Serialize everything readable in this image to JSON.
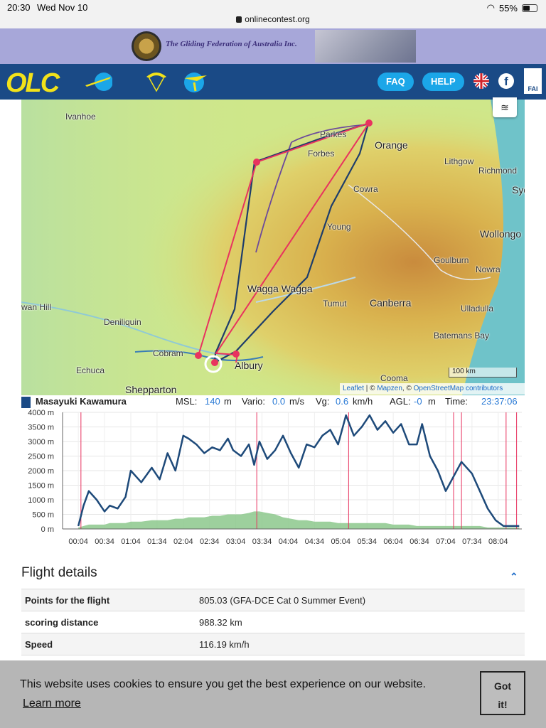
{
  "status": {
    "time": "20:30",
    "date": "Wed Nov 10",
    "url": "onlinecontest.org",
    "battery": "55%"
  },
  "banner": {
    "org": "The Gliding Federation of Australia Inc."
  },
  "nav": {
    "logo": "OLC",
    "faq": "FAQ",
    "help": "HELP",
    "fai": "FAI"
  },
  "map": {
    "labels": [
      "Ivanhoe",
      "Parkes",
      "Forbes",
      "Orange",
      "Lithgow",
      "Richmond",
      "Syd",
      "Cowra",
      "Young",
      "Wollongo",
      "Goulburn",
      "Nowra",
      "Wagga Wagga",
      "Canberra",
      "Tumut",
      "Ulladulla",
      "wan Hill",
      "Deniliquin",
      "Batemans Bay",
      "Cobram",
      "Albury",
      "Echuca",
      "Cooma",
      "Shepparton"
    ],
    "scale": "100 km",
    "attribution": {
      "leaflet": "Leaflet",
      "sep1": " | © ",
      "mapzen": "Mapzen",
      "sep2": ", © ",
      "osm": "OpenStreetMap contributors"
    }
  },
  "stats": {
    "pilot": "Masayuki Kawamura",
    "msl_label": "MSL:",
    "msl_value": "140",
    "msl_unit": "m",
    "vario_label": "Vario:",
    "vario_value": "0.0",
    "vario_unit": "m/s",
    "vg_label": "Vg:",
    "vg_value": "0.6",
    "vg_unit": "km/h",
    "agl_label": "AGL:",
    "agl_value": "-0",
    "agl_unit": "m",
    "time_label": "Time:",
    "time_value": "23:37:06"
  },
  "chart_data": {
    "type": "line",
    "y_tick_labels": [
      "4000 m",
      "3500 m",
      "3000 m",
      "2500 m",
      "2000 m",
      "1500 m",
      "1000 m",
      "500 m",
      "0 m"
    ],
    "ylim": [
      0,
      4000
    ],
    "x_tick_labels": [
      "00:04",
      "00:34",
      "01:04",
      "01:34",
      "02:04",
      "02:34",
      "03:04",
      "03:34",
      "04:04",
      "04:34",
      "05:04",
      "05:34",
      "06:04",
      "06:34",
      "07:04",
      "07:34",
      "08:04"
    ],
    "altitude_x": [
      0,
      0.1,
      0.2,
      0.35,
      0.5,
      0.6,
      0.75,
      0.9,
      1.0,
      1.2,
      1.4,
      1.55,
      1.7,
      1.85,
      2.0,
      2.1,
      2.25,
      2.4,
      2.55,
      2.7,
      2.85,
      2.95,
      3.1,
      3.25,
      3.35,
      3.45,
      3.6,
      3.75,
      3.9,
      4.05,
      4.2,
      4.35,
      4.5,
      4.65,
      4.8,
      4.95,
      5.1,
      5.25,
      5.4,
      5.55,
      5.7,
      5.85,
      6.0,
      6.15,
      6.3,
      6.45,
      6.55,
      6.7,
      6.85,
      7.0,
      7.15,
      7.3,
      7.5,
      7.65,
      7.8,
      7.95,
      8.1,
      8.25,
      8.4
    ],
    "altitude_m": [
      100,
      800,
      1300,
      1000,
      600,
      800,
      700,
      1100,
      2000,
      1600,
      2100,
      1700,
      2600,
      2000,
      3200,
      3100,
      2900,
      2600,
      2800,
      2700,
      3100,
      2700,
      2500,
      2900,
      2200,
      3000,
      2400,
      2700,
      3200,
      2600,
      2100,
      2900,
      2800,
      3200,
      3400,
      2900,
      3900,
      3200,
      3500,
      3900,
      3400,
      3700,
      3300,
      3600,
      2900,
      2900,
      3600,
      2500,
      2000,
      1300,
      1800,
      2300,
      1900,
      1300,
      700,
      300,
      100,
      100,
      100
    ],
    "ground_m": [
      50,
      100,
      150,
      150,
      150,
      200,
      200,
      200,
      250,
      250,
      300,
      300,
      300,
      350,
      350,
      400,
      400,
      400,
      450,
      450,
      500,
      500,
      500,
      550,
      600,
      600,
      550,
      500,
      400,
      350,
      300,
      300,
      250,
      250,
      250,
      200,
      200,
      200,
      200,
      200,
      200,
      200,
      150,
      150,
      150,
      100,
      100,
      100,
      100,
      100,
      100,
      100,
      100,
      100,
      50,
      50,
      50,
      50,
      50
    ],
    "x_range_hours": [
      -0.3,
      8.45
    ],
    "marker_lines_x": [
      0.05,
      3.4,
      5.15,
      7.15,
      7.3,
      8.15,
      8.35
    ]
  },
  "details": {
    "title": "Flight details",
    "rows": [
      {
        "k": "Points for the flight",
        "v": "805.03 (GFA-DCE Cat 0 Summer Event)"
      },
      {
        "k": "scoring distance",
        "v": "988.32 km"
      },
      {
        "k": "Speed",
        "v": "116.19 km/h"
      }
    ]
  },
  "cookie": {
    "message": "This website uses cookies to ensure you get the best experience on our website.",
    "learn": "Learn more",
    "button_line1": "Got",
    "button_line2": "it!"
  }
}
